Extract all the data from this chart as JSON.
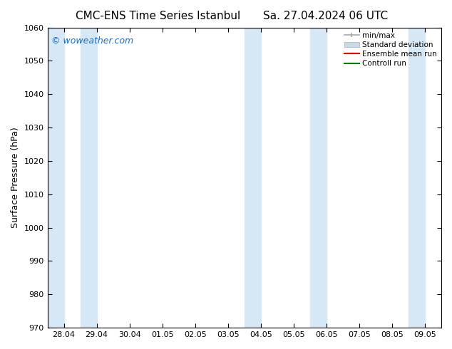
{
  "title_left": "CMC-ENS Time Series Istanbul",
  "title_right": "Sa. 27.04.2024 06 UTC",
  "ylabel": "Surface Pressure (hPa)",
  "ylim": [
    970,
    1060
  ],
  "yticks": [
    970,
    980,
    990,
    1000,
    1010,
    1020,
    1030,
    1040,
    1050,
    1060
  ],
  "xlabels": [
    "28.04",
    "29.04",
    "30.04",
    "01.05",
    "02.05",
    "03.05",
    "04.05",
    "05.05",
    "06.05",
    "07.05",
    "08.05",
    "09.05"
  ],
  "shaded_color": "#d6e8f5",
  "background_color": "#ffffff",
  "watermark": "© woweather.com",
  "watermark_color": "#1e6ab5",
  "legend_entries": [
    "min/max",
    "Standard deviation",
    "Ensemble mean run",
    "Controll run"
  ],
  "legend_colors_minmax": "#aaaaaa",
  "legend_colors_std": "#c8dce8",
  "legend_colors_mean": "#ff0000",
  "legend_colors_ctrl": "#008000",
  "title_fontsize": 11,
  "axis_fontsize": 9,
  "tick_fontsize": 8
}
